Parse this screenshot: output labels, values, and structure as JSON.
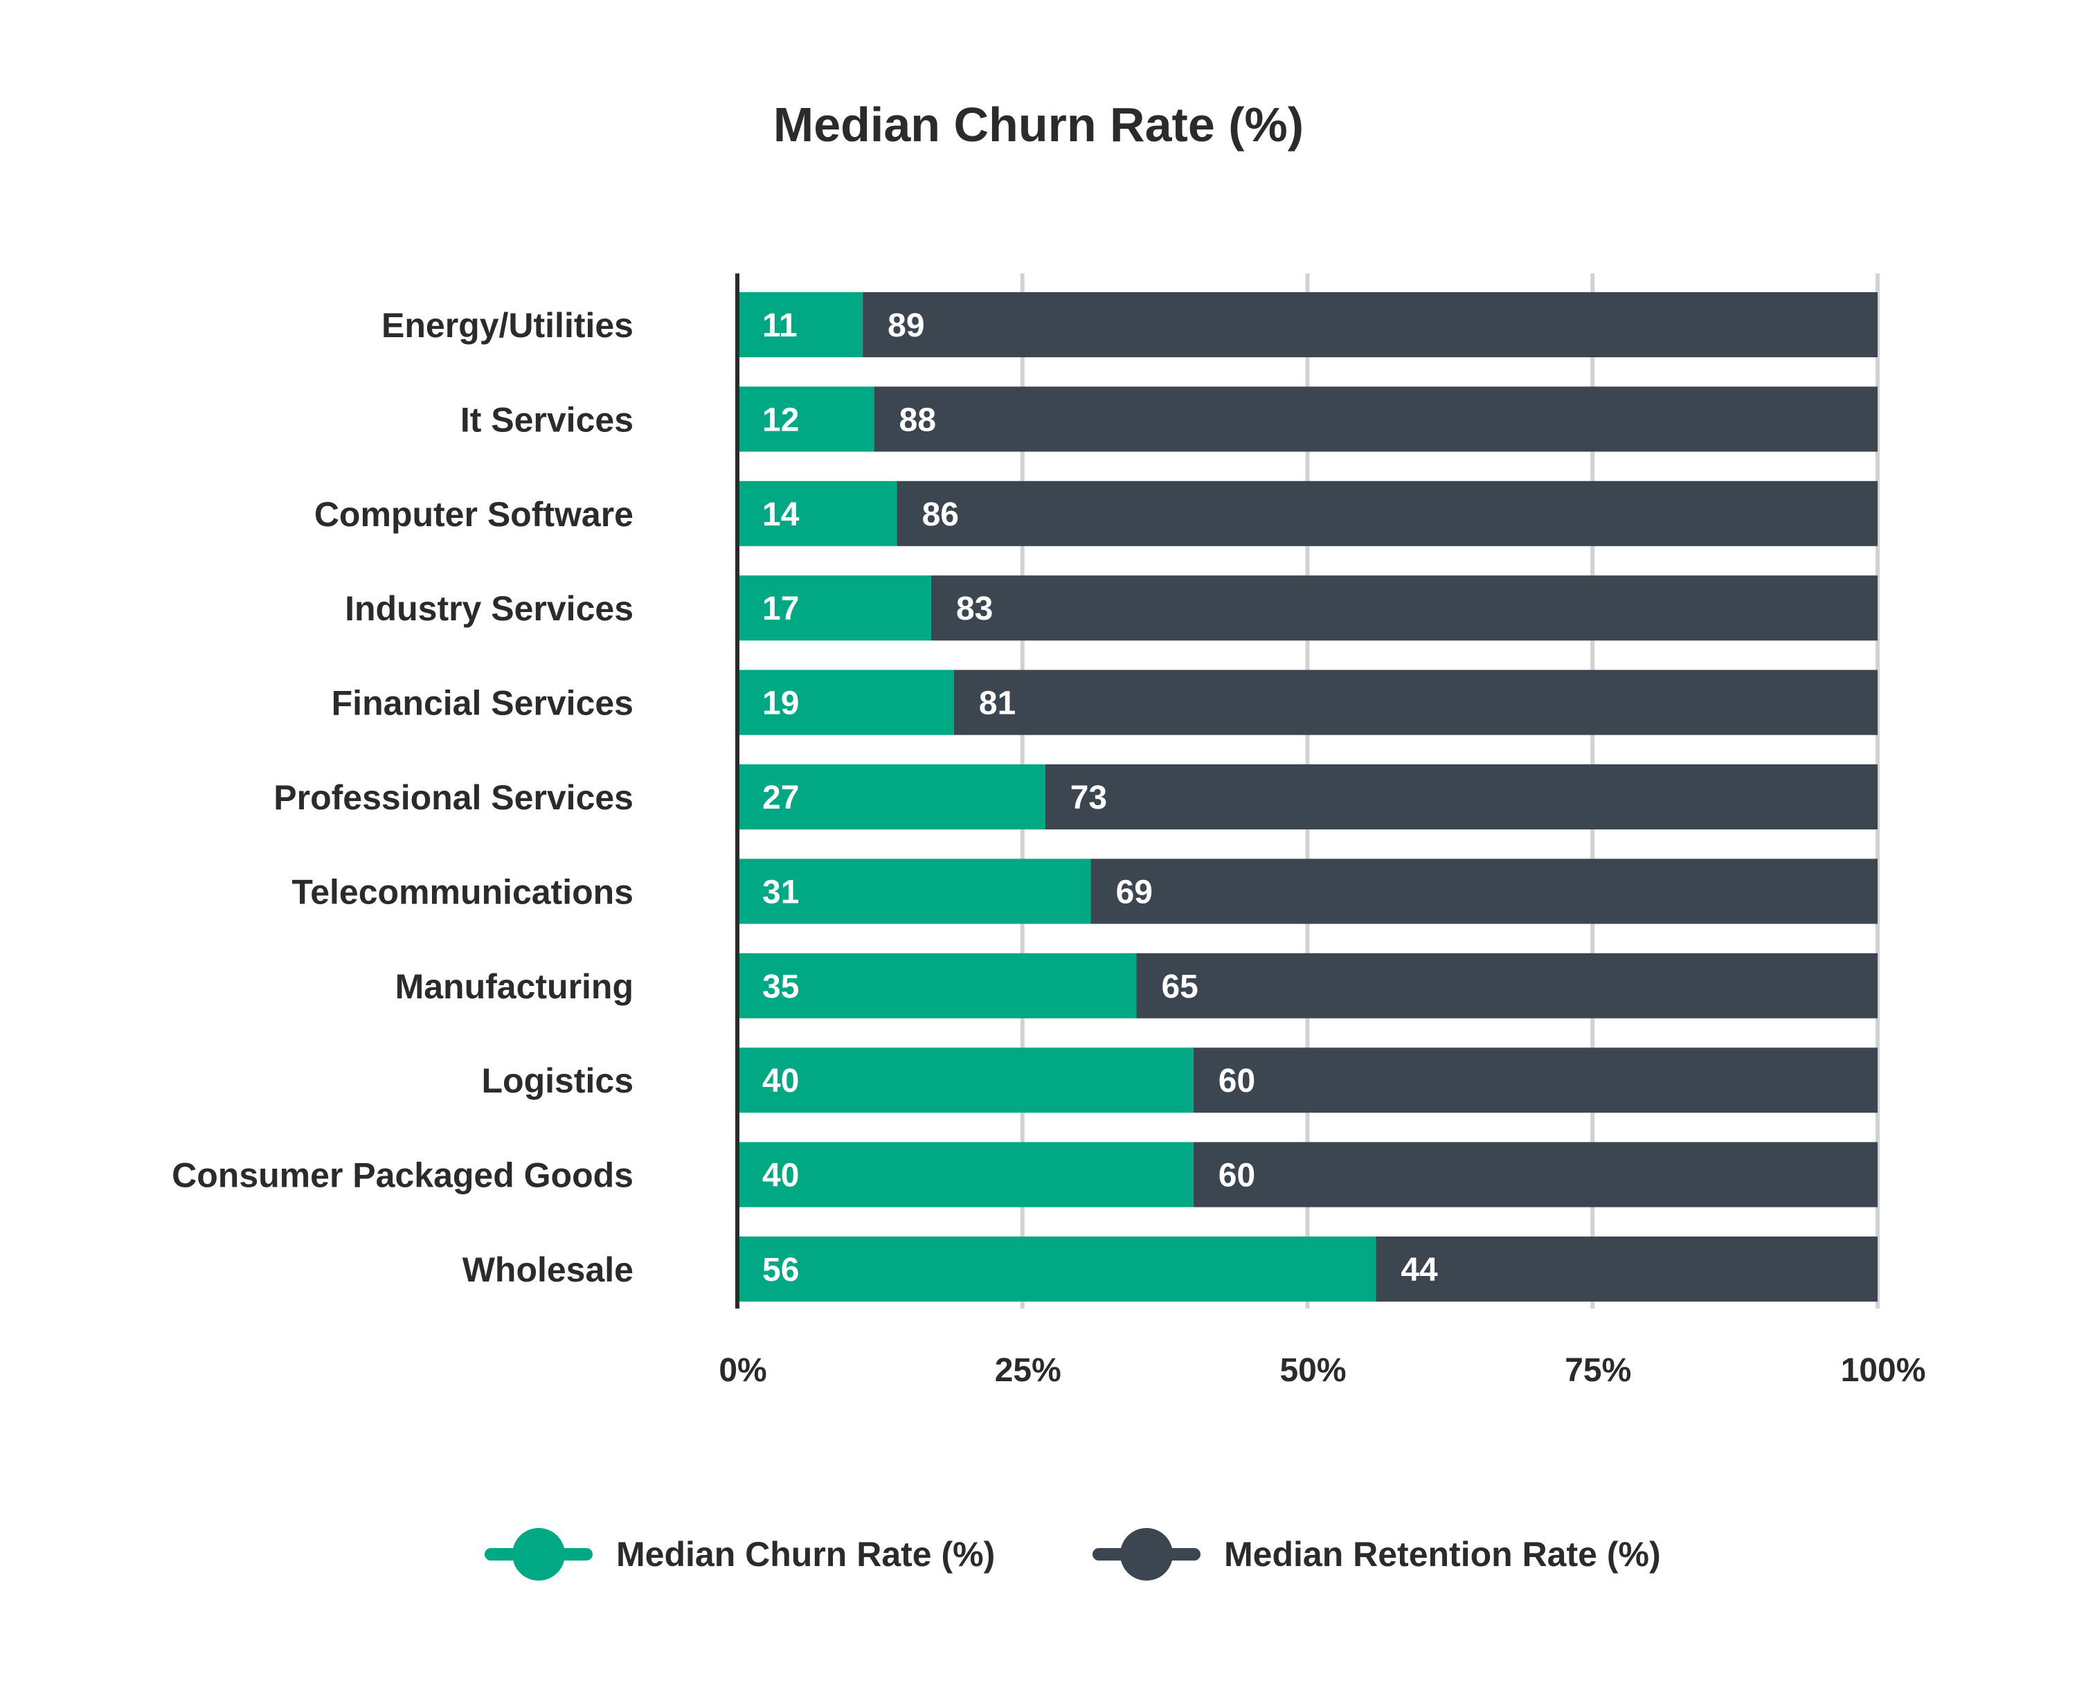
{
  "chart_data": {
    "type": "bar",
    "orientation": "horizontal",
    "stacked": true,
    "title": "Median Churn Rate (%)",
    "categories": [
      "Energy/Utilities",
      "It Services",
      "Computer Software",
      "Industry Services",
      "Financial Services",
      "Professional Services",
      "Telecommunications",
      "Manufacturing",
      "Logistics",
      "Consumer Packaged Goods",
      "Wholesale"
    ],
    "series": [
      {
        "name": "Median Churn Rate (%)",
        "color": "#00a884",
        "values": [
          11,
          12,
          14,
          17,
          19,
          27,
          31,
          35,
          40,
          40,
          56
        ]
      },
      {
        "name": "Median Retention Rate (%)",
        "color": "#3c4650",
        "values": [
          89,
          88,
          86,
          83,
          81,
          73,
          69,
          65,
          60,
          60,
          44
        ]
      }
    ],
    "xlim": [
      0,
      100
    ],
    "xticks": [
      "0%",
      "25%",
      "50%",
      "75%",
      "100%"
    ],
    "xtick_values": [
      0,
      25,
      50,
      75,
      100
    ],
    "grid": true,
    "legend_position": "bottom"
  }
}
